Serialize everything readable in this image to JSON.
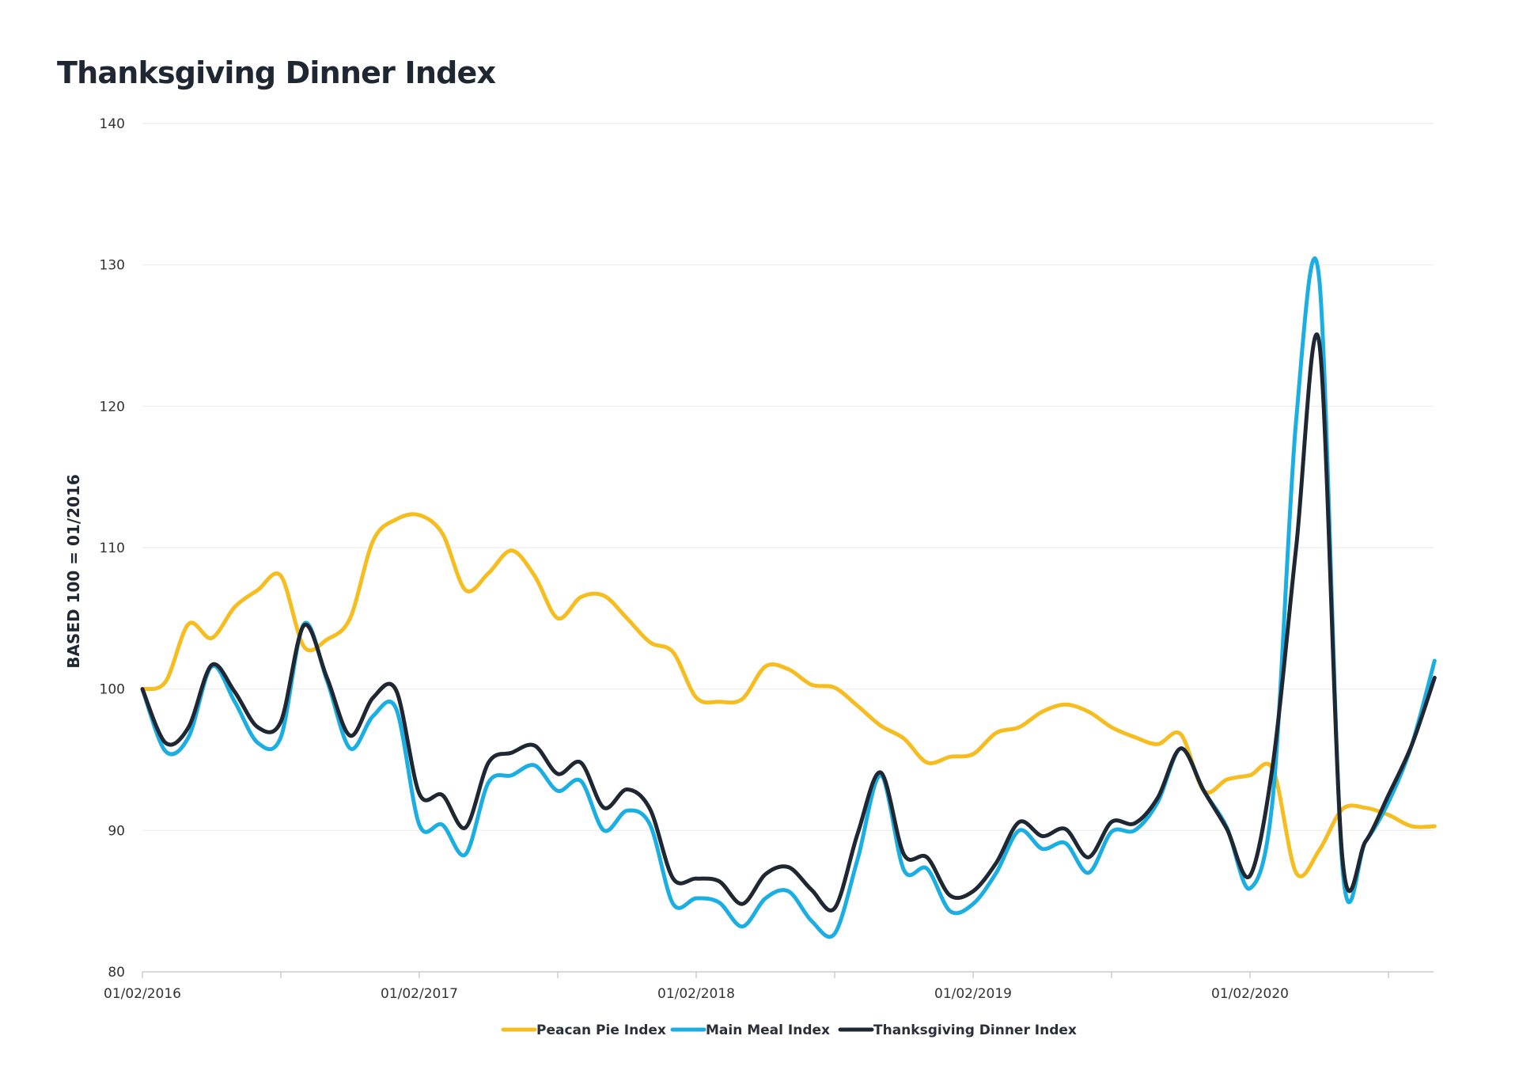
{
  "chart_data": {
    "type": "line",
    "title": "Thanksgiving Dinner Index",
    "ylabel": "BASED 100 = 01/2016",
    "xlabel": "",
    "ylim": [
      80,
      140
    ],
    "yticks": [
      80,
      90,
      100,
      110,
      120,
      130,
      140
    ],
    "xticks": [
      "01/02/2016",
      "01/02/2017",
      "01/02/2018",
      "01/02/2019",
      "01/02/2020"
    ],
    "x_period": "monthly, 01/2016 to 09/2020",
    "grid": "horizontal",
    "legend_position": "bottom-center",
    "series": [
      {
        "name": "Peacan Pie Index",
        "color": "#F5BD1F",
        "values": [
          100,
          100.5,
          104.6,
          103.6,
          105.8,
          107.0,
          108.0,
          103.0,
          103.5,
          105.0,
          110.5,
          112.0,
          112.3,
          111.0,
          107.0,
          108.2,
          109.8,
          108.0,
          105.0,
          106.5,
          106.6,
          105.0,
          103.3,
          102.6,
          99.4,
          99.1,
          99.3,
          101.6,
          101.4,
          100.3,
          100.1,
          98.8,
          97.4,
          96.5,
          94.8,
          95.2,
          95.4,
          96.9,
          97.3,
          98.4,
          98.9,
          98.4,
          97.3,
          96.6,
          96.1,
          96.8,
          92.8,
          93.6,
          93.9,
          94.3,
          87.0,
          88.6,
          91.5,
          91.6,
          91.1,
          90.3,
          90.3
        ]
      },
      {
        "name": "Main Meal Index",
        "color": "#1BAEE3",
        "values": [
          100,
          95.6,
          96.6,
          101.6,
          99.1,
          96.2,
          96.6,
          104.6,
          100.6,
          95.8,
          98.1,
          98.6,
          90.4,
          90.4,
          88.3,
          93.4,
          93.9,
          94.6,
          92.8,
          93.5,
          90.0,
          91.4,
          90.4,
          84.8,
          85.2,
          84.9,
          83.2,
          85.2,
          85.7,
          83.6,
          82.7,
          88.0,
          93.9,
          87.2,
          87.3,
          84.3,
          84.8,
          87.0,
          90.0,
          88.7,
          89.1,
          87.0,
          89.9,
          90.0,
          92.0,
          95.8,
          92.8,
          90.2,
          85.9,
          92.5,
          119.0,
          129.0,
          87.5,
          89.2,
          92.0,
          96.0,
          102.0
        ]
      },
      {
        "name": "Thanksgiving Dinner Index",
        "color": "#1F2733",
        "values": [
          100,
          96.2,
          97.3,
          101.7,
          99.8,
          97.3,
          97.7,
          104.5,
          100.8,
          96.7,
          99.4,
          99.9,
          92.6,
          92.5,
          90.2,
          94.8,
          95.5,
          96.0,
          94.0,
          94.8,
          91.6,
          92.9,
          91.5,
          86.6,
          86.6,
          86.4,
          84.8,
          86.9,
          87.4,
          85.8,
          84.5,
          89.8,
          94.1,
          88.3,
          88.1,
          85.4,
          85.7,
          87.7,
          90.6,
          89.6,
          90.1,
          88.1,
          90.6,
          90.5,
          92.3,
          95.8,
          92.8,
          90.1,
          86.8,
          94.8,
          110.0,
          124.5,
          88.1,
          89.2,
          92.5,
          96.0,
          100.8
        ]
      }
    ]
  }
}
